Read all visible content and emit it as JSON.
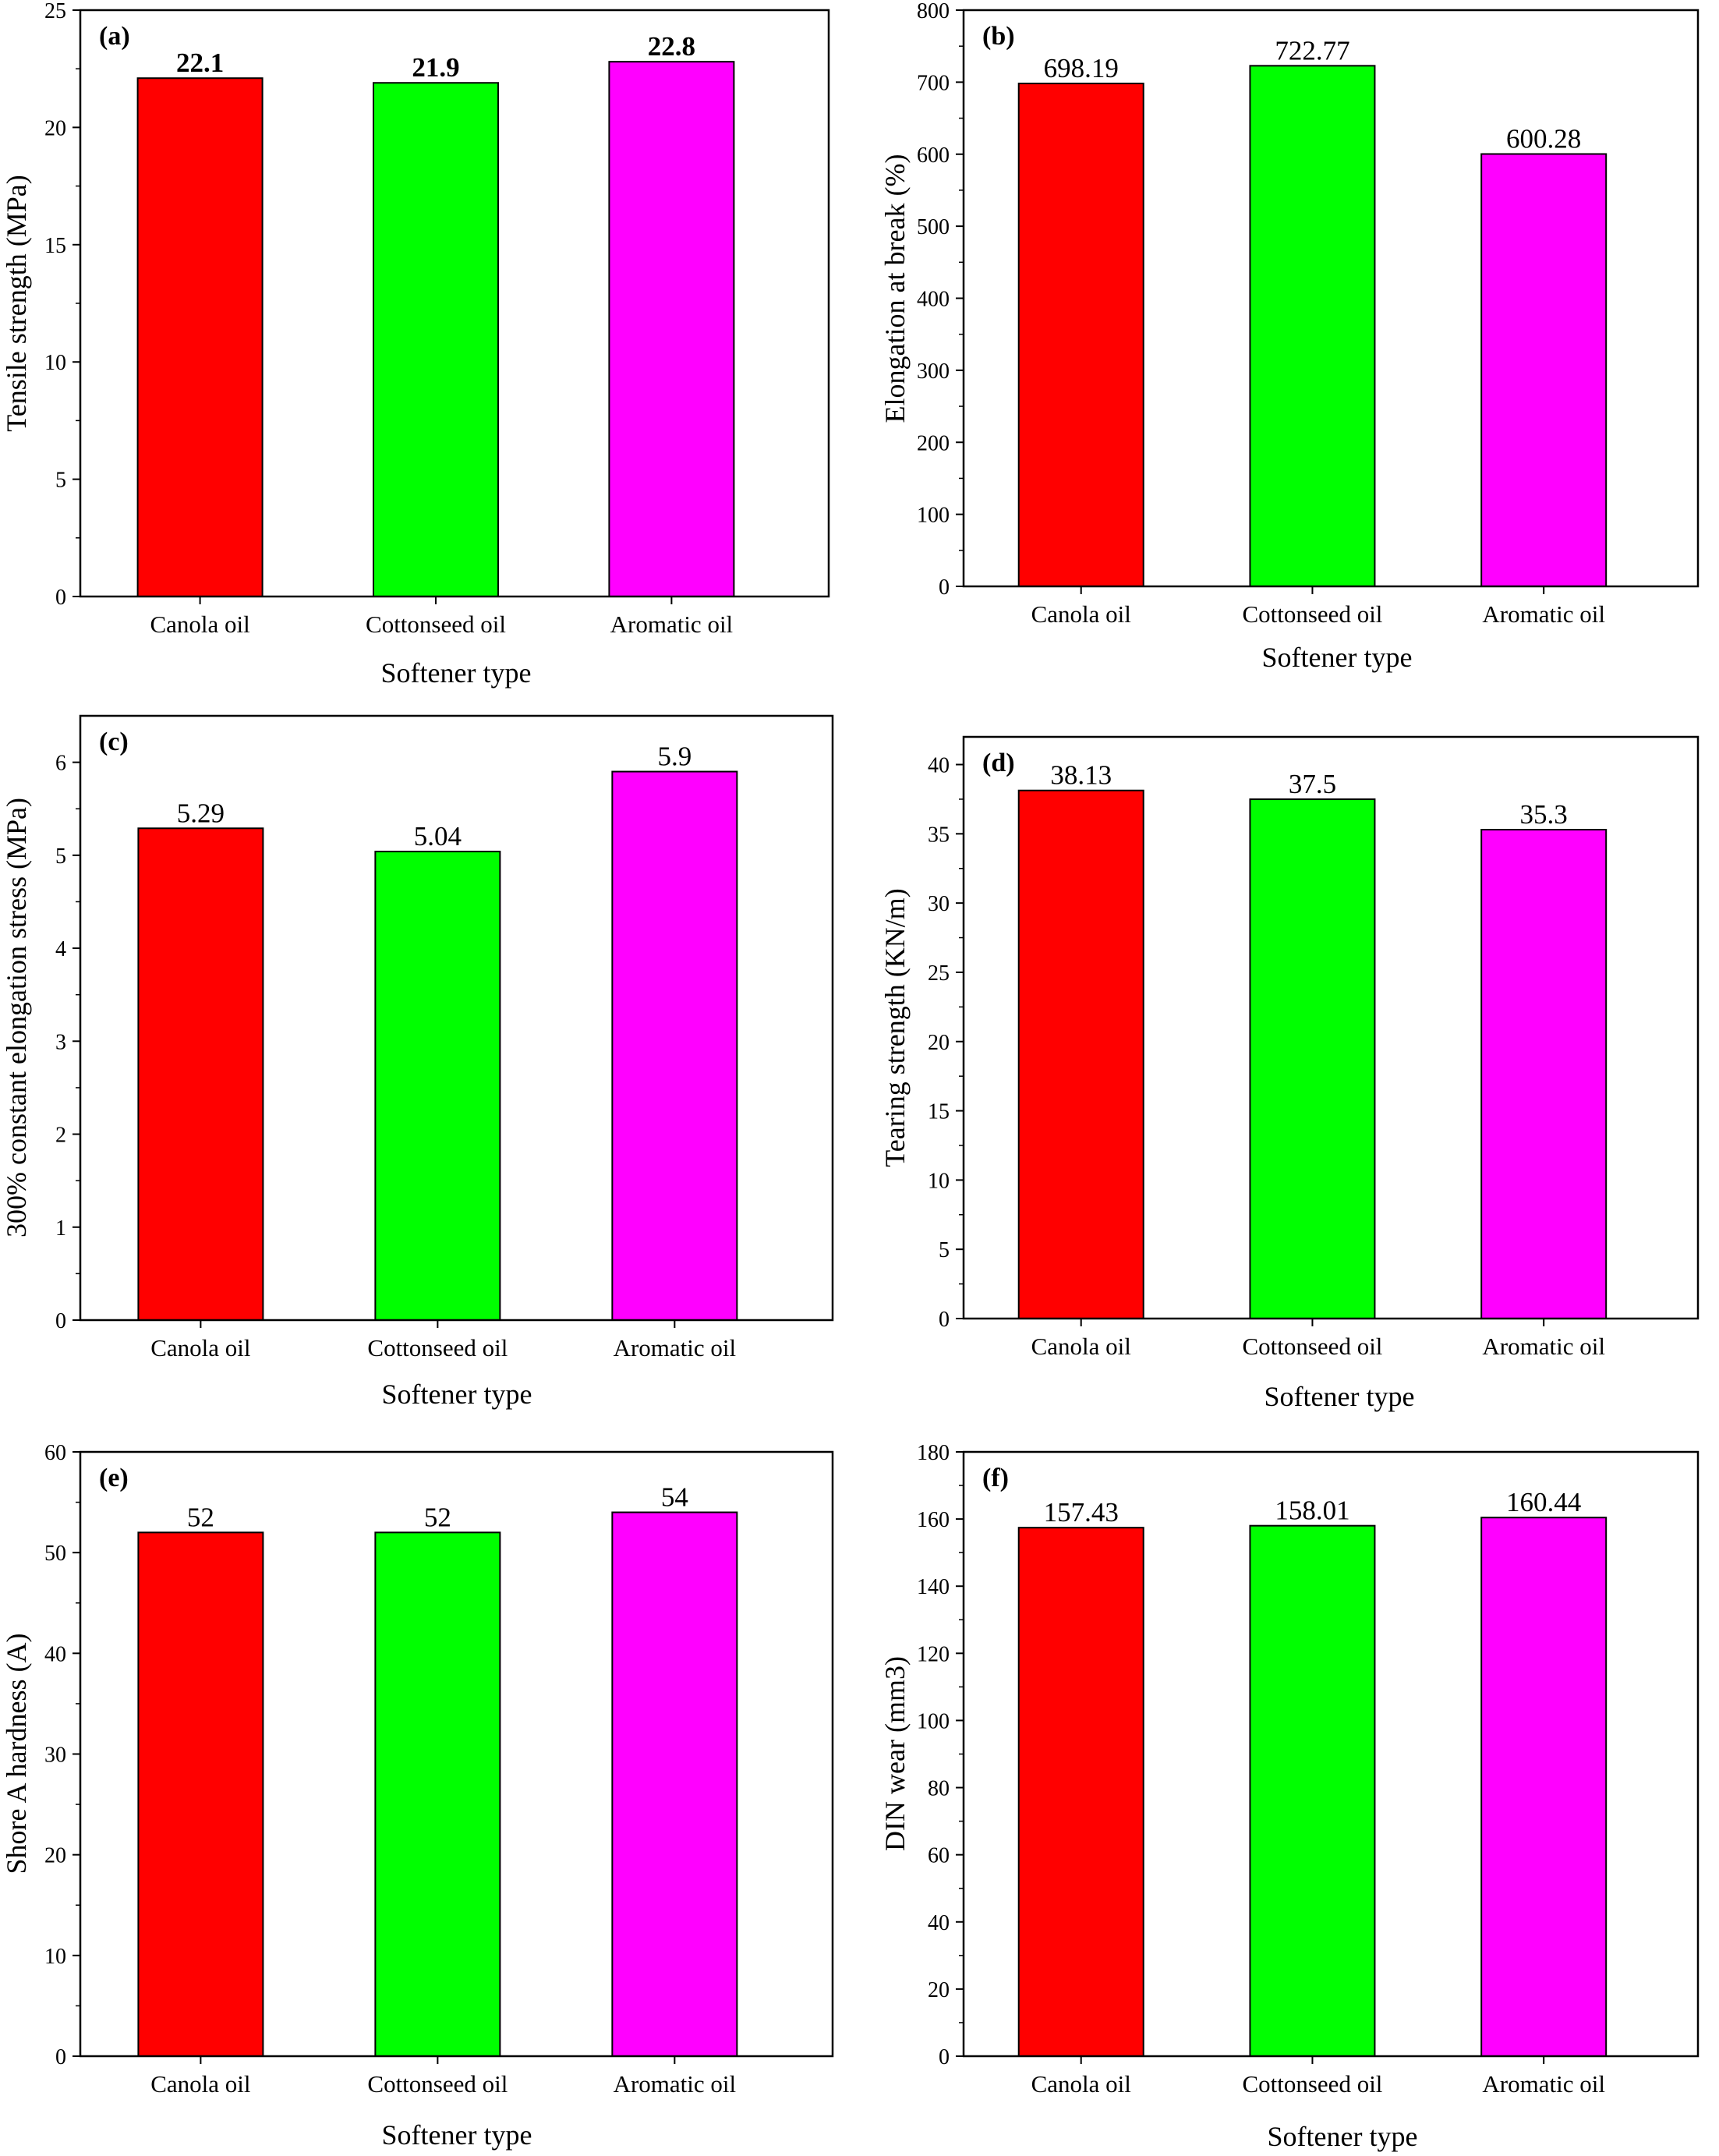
{
  "figure": {
    "colors": {
      "Canola oil": "#ff0000",
      "Cottonseed oil": "#00ff00",
      "Aromatic oil": "#ff00ff"
    }
  },
  "chart_data": [
    {
      "panel": "(a)",
      "type": "bar",
      "categories": [
        "Canola oil",
        "Cottonseed oil",
        "Aromatic oil"
      ],
      "values": [
        22.1,
        21.9,
        22.8
      ],
      "value_labels": [
        "22.1",
        "21.9",
        "22.8"
      ],
      "value_labels_bold": true,
      "xlabel": "Softener type",
      "ylabel": "Tensile strength (MPa)",
      "ylim": [
        0,
        25
      ],
      "yticks": [
        0,
        5,
        10,
        15,
        20,
        25
      ]
    },
    {
      "panel": "(b)",
      "type": "bar",
      "categories": [
        "Canola oil",
        "Cottonseed oil",
        "Aromatic oil"
      ],
      "values": [
        698.19,
        722.77,
        600.28
      ],
      "value_labels": [
        "698.19",
        "722.77",
        "600.28"
      ],
      "value_labels_bold": false,
      "xlabel": "Softener type",
      "ylabel": "Elongation at break (%)",
      "ylim": [
        0,
        800
      ],
      "yticks": [
        0,
        100,
        200,
        300,
        400,
        500,
        600,
        700,
        800
      ]
    },
    {
      "panel": "(c)",
      "type": "bar",
      "categories": [
        "Canola oil",
        "Cottonseed oil",
        "Aromatic oil"
      ],
      "values": [
        5.29,
        5.04,
        5.9
      ],
      "value_labels": [
        "5.29",
        "5.04",
        "5.9"
      ],
      "value_labels_bold": false,
      "xlabel": "Softener type",
      "ylabel": "300% constant elongation stress (MPa)",
      "ylim": [
        0,
        6.5
      ],
      "yticks": [
        0,
        1,
        2,
        3,
        4,
        5,
        6
      ]
    },
    {
      "panel": "(d)",
      "type": "bar",
      "categories": [
        "Canola oil",
        "Cottonseed oil",
        "Aromatic oil"
      ],
      "values": [
        38.13,
        37.5,
        35.3
      ],
      "value_labels": [
        "38.13",
        "37.5",
        "35.3"
      ],
      "value_labels_bold": false,
      "xlabel": "Softener type",
      "ylabel": "Tearing strength (KN/m)",
      "ylim": [
        0,
        42
      ],
      "yticks": [
        0,
        5,
        10,
        15,
        20,
        25,
        30,
        35,
        40
      ]
    },
    {
      "panel": "(e)",
      "type": "bar",
      "categories": [
        "Canola oil",
        "Cottonseed oil",
        "Aromatic oil"
      ],
      "values": [
        52,
        52,
        54
      ],
      "value_labels": [
        "52",
        "52",
        "54"
      ],
      "value_labels_bold": false,
      "xlabel": "Softener type",
      "ylabel": "Shore A hardness (A)",
      "ylim": [
        0,
        60
      ],
      "yticks": [
        0,
        10,
        20,
        30,
        40,
        50,
        60
      ]
    },
    {
      "panel": "(f)",
      "type": "bar",
      "categories": [
        "Canola oil",
        "Cottonseed oil",
        "Aromatic oil"
      ],
      "values": [
        157.43,
        158.01,
        160.44
      ],
      "value_labels": [
        "157.43",
        "158.01",
        "160.44"
      ],
      "value_labels_bold": false,
      "xlabel": "Softener type",
      "ylabel": "DIN wear (mm3)",
      "ylim": [
        0,
        180
      ],
      "yticks": [
        0,
        20,
        40,
        60,
        80,
        100,
        120,
        140,
        160,
        180
      ]
    }
  ]
}
